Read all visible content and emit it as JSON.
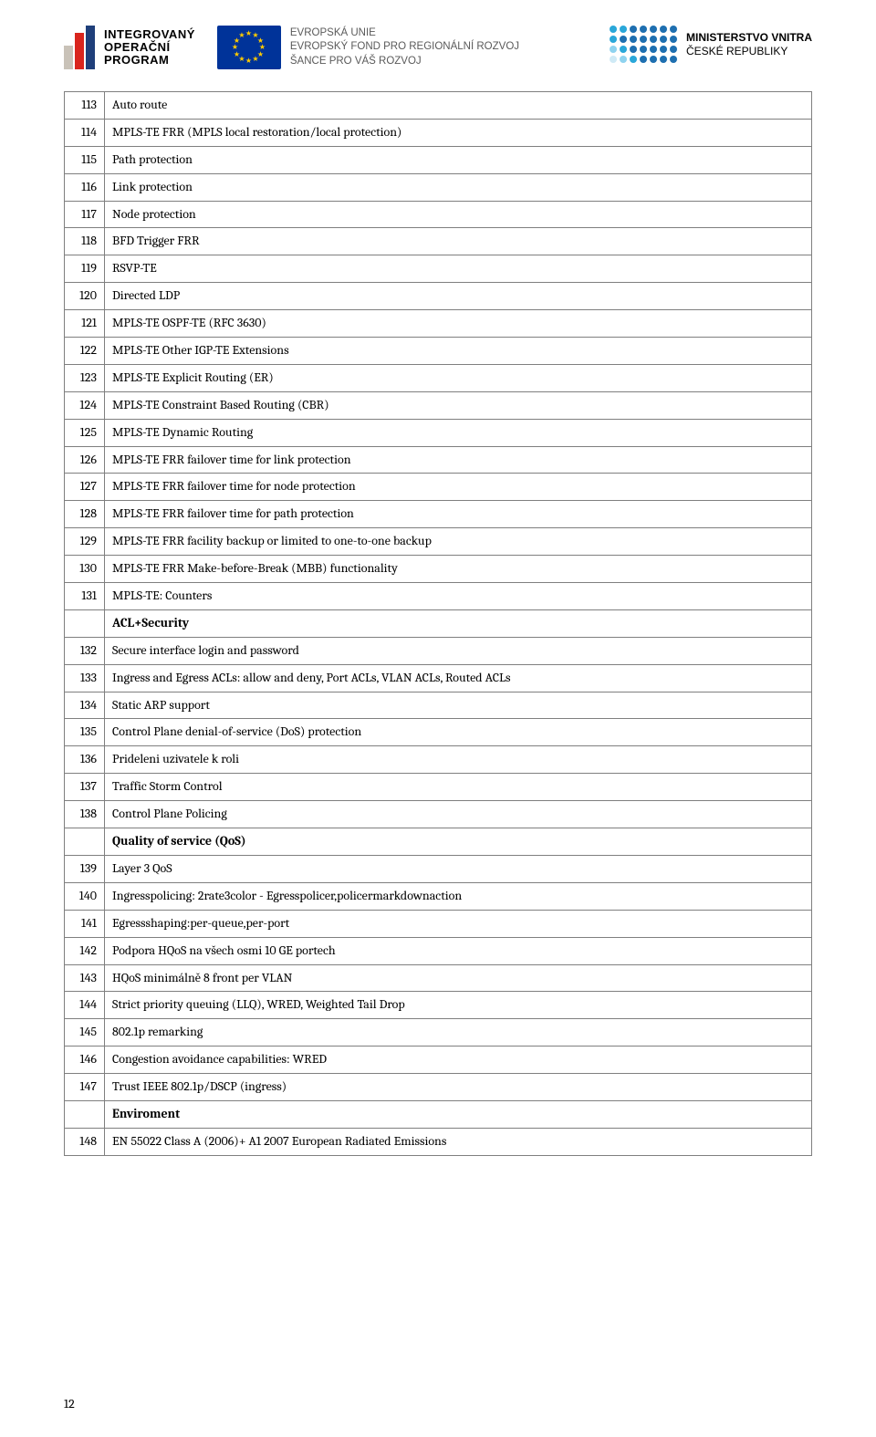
{
  "header": {
    "iop": {
      "line1": "INTEGROVANÝ",
      "line2": "OPERAČNÍ",
      "line3": "PROGRAM",
      "bar_colors": [
        "#c9c2b8",
        "#d9251d",
        "#1f3f7a"
      ]
    },
    "eu": {
      "line1": "EVROPSKÁ UNIE",
      "line2": "EVROPSKÝ FOND PRO REGIONÁLNÍ ROZVOJ",
      "line3": "ŠANCE PRO VÁŠ ROZVOJ",
      "flag_bg": "#003399",
      "star_color": "#ffcc00"
    },
    "mv": {
      "line1": "MINISTERSTVO VNITRA",
      "line2": "ČESKÉ REPUBLIKY",
      "dot_colors": [
        "#2aa7d9",
        "#2aa7d9",
        "#1e6fb0",
        "#1e6fb0",
        "#1e6fb0",
        "#1e6fb0",
        "#1e6fb0",
        "#2aa7d9",
        "#1e6fb0",
        "#1e6fb0",
        "#1e6fb0",
        "#1e6fb0",
        "#1e6fb0",
        "#1e6fb0",
        "#8fd3ef",
        "#2aa7d9",
        "#1e6fb0",
        "#1e6fb0",
        "#1e6fb0",
        "#1e6fb0",
        "#1e6fb0",
        "#cfeaf6",
        "#8fd3ef",
        "#2aa7d9",
        "#1e6fb0",
        "#1e6fb0",
        "#1e6fb0",
        "#1e6fb0"
      ]
    }
  },
  "table": {
    "border_color": "#7f7f7f",
    "rows": [
      {
        "n": "113",
        "t": "Auto route"
      },
      {
        "n": "114",
        "t": "MPLS-TE FRR (MPLS local restoration/local protection)"
      },
      {
        "n": "115",
        "t": "Path protection"
      },
      {
        "n": "116",
        "t": "Link protection"
      },
      {
        "n": "117",
        "t": "Node protection"
      },
      {
        "n": "118",
        "t": "BFD Trigger FRR"
      },
      {
        "n": "119",
        "t": "RSVP-TE"
      },
      {
        "n": "120",
        "t": "Directed LDP"
      },
      {
        "n": "121",
        "t": "MPLS-TE OSPF-TE (RFC 3630)"
      },
      {
        "n": "122",
        "t": "MPLS-TE Other IGP-TE Extensions"
      },
      {
        "n": "123",
        "t": "MPLS-TE Explicit Routing (ER)"
      },
      {
        "n": "124",
        "t": "MPLS-TE Constraint Based Routing (CBR)"
      },
      {
        "n": "125",
        "t": "MPLS-TE Dynamic Routing"
      },
      {
        "n": "126",
        "t": "MPLS-TE FRR failover time for link protection"
      },
      {
        "n": "127",
        "t": "MPLS-TE FRR failover time for node protection"
      },
      {
        "n": "128",
        "t": "MPLS-TE FRR failover time for path protection"
      },
      {
        "n": "129",
        "t": "MPLS-TE FRR facility backup or limited to one-to-one backup"
      },
      {
        "n": "130",
        "t": "MPLS-TE FRR Make-before-Break (MBB) functionality"
      },
      {
        "n": "131",
        "t": "MPLS-TE: Counters"
      },
      {
        "section": true,
        "t": "ACL+Security"
      },
      {
        "n": "132",
        "t": "Secure interface login and password"
      },
      {
        "n": "133",
        "t": "Ingress and Egress ACLs: allow and deny, Port ACLs, VLAN ACLs, Routed ACLs"
      },
      {
        "n": "134",
        "t": "Static ARP support"
      },
      {
        "n": "135",
        "t": "Control Plane denial-of-service (DoS) protection"
      },
      {
        "n": "136",
        "t": "Prideleni uzivatele k roli"
      },
      {
        "n": "137",
        "t": "Traffic Storm Control"
      },
      {
        "n": "138",
        "t": "Control Plane Policing"
      },
      {
        "section": true,
        "t": "Quality of service (QoS)"
      },
      {
        "n": "139",
        "t": "Layer 3 QoS"
      },
      {
        "n": "140",
        "t": "Ingresspolicing: 2rate3color - Egresspolicer,policermarkdownaction"
      },
      {
        "n": "141",
        "t": "Egressshaping:per-queue,per-port"
      },
      {
        "n": "142",
        "t": "Podpora HQoS na všech osmi 10 GE portech"
      },
      {
        "n": "143",
        "t": "HQoS minimálně 8 front per VLAN"
      },
      {
        "n": "144",
        "t": "Strict priority queuing (LLQ), WRED, Weighted Tail Drop"
      },
      {
        "n": "145",
        "t": "802.1p remarking"
      },
      {
        "n": "146",
        "t": "Congestion avoidance capabilities: WRED"
      },
      {
        "n": "147",
        "t": "Trust IEEE 802.1p/DSCP (ingress)"
      },
      {
        "section": true,
        "t": "Enviroment"
      },
      {
        "n": "148",
        "t": "EN 55022 Class A (2006)+ A1 2007 European Radiated Emissions"
      }
    ]
  },
  "page_number": "12"
}
